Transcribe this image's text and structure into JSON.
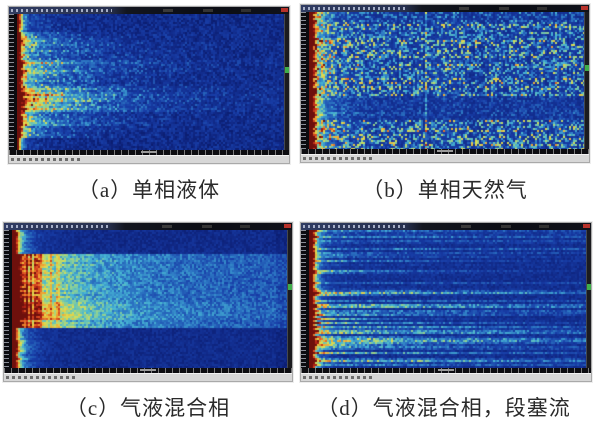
{
  "figure": {
    "background": "#ffffff",
    "caption_color": "#2a2a2a",
    "chrome": {
      "titlebar_color": "#1a2138",
      "close_button_color": "#b8322a",
      "scroll_marker_color": "#3fae4a",
      "statusbar_color": "#d7d7d7",
      "axis_strip_color": "#0c0c10"
    },
    "colormap": [
      [
        0.0,
        6,
        18,
        90
      ],
      [
        0.18,
        16,
        40,
        134
      ],
      [
        0.32,
        24,
        62,
        168
      ],
      [
        0.46,
        45,
        120,
        196
      ],
      [
        0.56,
        72,
        182,
        212
      ],
      [
        0.64,
        140,
        208,
        150
      ],
      [
        0.72,
        222,
        222,
        80
      ],
      [
        0.8,
        240,
        170,
        52
      ],
      [
        0.88,
        222,
        80,
        34
      ],
      [
        0.94,
        180,
        34,
        22
      ],
      [
        1.0,
        110,
        16,
        12
      ]
    ],
    "panels": [
      {
        "id": "a",
        "caption": "（a）单相液体",
        "type": "liquid",
        "seed": 1101,
        "bands": [
          [
            0,
            0.13,
            0.18,
            0.1
          ],
          [
            0.13,
            0.2,
            0.45,
            0.16
          ],
          [
            0.2,
            0.33,
            0.38,
            0.22
          ],
          [
            0.33,
            0.42,
            0.55,
            0.26
          ],
          [
            0.42,
            0.52,
            0.42,
            0.22
          ],
          [
            0.52,
            0.62,
            0.62,
            0.3
          ],
          [
            0.62,
            0.72,
            0.6,
            0.28
          ],
          [
            0.72,
            0.82,
            0.5,
            0.2
          ],
          [
            0.82,
            0.9,
            0.35,
            0.14
          ],
          [
            0.9,
            1.0,
            0.12,
            0.07
          ]
        ]
      },
      {
        "id": "b",
        "caption": "（b）单相天然气",
        "type": "gas",
        "seed": 2202,
        "dark_band": [
          0.6,
          0.77
        ],
        "top_band": 0.07,
        "vline_x": 0.42
      },
      {
        "id": "c",
        "caption": "（c）气液混合相",
        "type": "mixed",
        "seed": 3303,
        "hot_band": [
          0.17,
          0.7
        ],
        "boost_band": [
          0.52,
          0.64
        ]
      },
      {
        "id": "d",
        "caption": "（d）气液混合相，段塞流",
        "type": "slug",
        "seed": 4404
      }
    ]
  },
  "chart_data": [
    {
      "type": "heatmap",
      "subfigure": "(a)",
      "title": "（a）单相液体",
      "colormap": "jet (blue-cyan-yellow-orange-red)",
      "pattern": "energy concentrated at left edge (red column), yellow horizontal bands in middle rows decaying to cyan then deep blue toward the right; top and bottom rows quiet blue",
      "axis_labels": "tick text illegible at this resolution"
    },
    {
      "type": "heatmap",
      "subfigure": "(b)",
      "title": "（b）单相天然气",
      "colormap": "jet (blue-cyan-yellow-orange-red)",
      "pattern": "dense grid-like cyan/yellow speckle across the whole plot with vertical striations, a bright vertical line near 42% width, a quieter dark-blue horizontal band at ~60-77% height, red column at left edge",
      "axis_labels": "tick text illegible at this resolution"
    },
    {
      "type": "heatmap",
      "subfigure": "(c)",
      "title": "（c）气液混合相",
      "colormap": "jet (blue-cyan-yellow-orange-red)",
      "pattern": "broad hot horizontal band from ~17% to ~70% height: dark red/orange at left with darker red vertical lines, fading through yellow to green-cyan extending across the full width; deep blue bands above and below",
      "axis_labels": "tick text illegible at this resolution"
    },
    {
      "type": "heatmap",
      "subfigure": "(d)",
      "title": "（d）气液混合相，段塞流",
      "colormap": "jet (blue-cyan-yellow-orange-red)",
      "pattern": "wide red/orange column at left edge, then many thin horizontal cyan streak lines (slug flow signatures) running across a blue background for the full width",
      "axis_labels": "tick text illegible at this resolution"
    }
  ]
}
